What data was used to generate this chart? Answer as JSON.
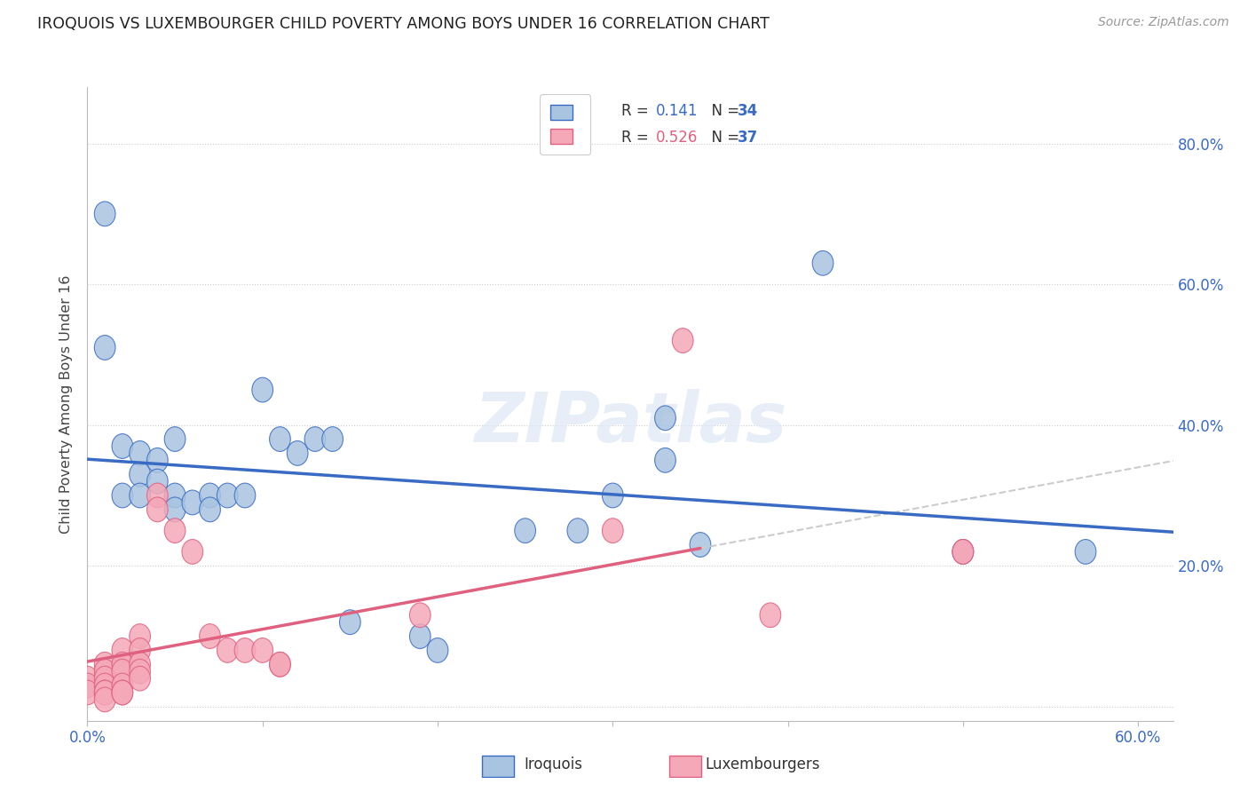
{
  "title": "IROQUOIS VS LUXEMBOURGER CHILD POVERTY AMONG BOYS UNDER 16 CORRELATION CHART",
  "source": "Source: ZipAtlas.com",
  "ylabel": "Child Poverty Among Boys Under 16",
  "legend_iroquois": "Iroquois",
  "legend_luxembourgers": "Luxembourgers",
  "iroquois_R": "0.141",
  "iroquois_N": "34",
  "luxembourgers_R": "0.526",
  "luxembourgers_N": "37",
  "iroquois_color": "#a8c4e0",
  "luxembourgers_color": "#f4a8b8",
  "iroquois_line_color": "#3a6bc4",
  "luxembourgers_line_color": "#e06080",
  "iroquois_scatter": [
    [
      0.01,
      0.7
    ],
    [
      0.01,
      0.51
    ],
    [
      0.02,
      0.37
    ],
    [
      0.02,
      0.3
    ],
    [
      0.03,
      0.36
    ],
    [
      0.03,
      0.33
    ],
    [
      0.03,
      0.3
    ],
    [
      0.04,
      0.35
    ],
    [
      0.04,
      0.32
    ],
    [
      0.05,
      0.38
    ],
    [
      0.05,
      0.3
    ],
    [
      0.05,
      0.28
    ],
    [
      0.06,
      0.29
    ],
    [
      0.07,
      0.3
    ],
    [
      0.07,
      0.28
    ],
    [
      0.08,
      0.3
    ],
    [
      0.09,
      0.3
    ],
    [
      0.1,
      0.45
    ],
    [
      0.11,
      0.38
    ],
    [
      0.12,
      0.36
    ],
    [
      0.13,
      0.38
    ],
    [
      0.14,
      0.38
    ],
    [
      0.15,
      0.12
    ],
    [
      0.19,
      0.1
    ],
    [
      0.2,
      0.08
    ],
    [
      0.25,
      0.25
    ],
    [
      0.28,
      0.25
    ],
    [
      0.3,
      0.3
    ],
    [
      0.33,
      0.41
    ],
    [
      0.33,
      0.35
    ],
    [
      0.35,
      0.23
    ],
    [
      0.42,
      0.63
    ],
    [
      0.5,
      0.22
    ],
    [
      0.57,
      0.22
    ]
  ],
  "luxembourgers_scatter": [
    [
      0.0,
      0.04
    ],
    [
      0.0,
      0.03
    ],
    [
      0.0,
      0.02
    ],
    [
      0.01,
      0.06
    ],
    [
      0.01,
      0.05
    ],
    [
      0.01,
      0.04
    ],
    [
      0.01,
      0.03
    ],
    [
      0.01,
      0.02
    ],
    [
      0.01,
      0.02
    ],
    [
      0.01,
      0.01
    ],
    [
      0.02,
      0.08
    ],
    [
      0.02,
      0.06
    ],
    [
      0.02,
      0.05
    ],
    [
      0.02,
      0.03
    ],
    [
      0.02,
      0.02
    ],
    [
      0.02,
      0.02
    ],
    [
      0.03,
      0.1
    ],
    [
      0.03,
      0.08
    ],
    [
      0.03,
      0.06
    ],
    [
      0.03,
      0.05
    ],
    [
      0.03,
      0.04
    ],
    [
      0.04,
      0.3
    ],
    [
      0.04,
      0.28
    ],
    [
      0.05,
      0.25
    ],
    [
      0.06,
      0.22
    ],
    [
      0.07,
      0.1
    ],
    [
      0.08,
      0.08
    ],
    [
      0.09,
      0.08
    ],
    [
      0.1,
      0.08
    ],
    [
      0.11,
      0.06
    ],
    [
      0.11,
      0.06
    ],
    [
      0.19,
      0.13
    ],
    [
      0.3,
      0.25
    ],
    [
      0.34,
      0.52
    ],
    [
      0.39,
      0.13
    ],
    [
      0.5,
      0.22
    ],
    [
      0.5,
      0.22
    ]
  ],
  "watermark": "ZIPatlas",
  "xlim": [
    0.0,
    0.62
  ],
  "ylim": [
    -0.02,
    0.88
  ],
  "xticks": [
    0.0,
    0.1,
    0.2,
    0.3,
    0.4,
    0.5,
    0.6
  ],
  "yticks": [
    0.0,
    0.2,
    0.4,
    0.6,
    0.8
  ],
  "xlabel_labels": [
    "0.0%",
    "",
    "",
    "",
    "",
    "",
    "60.0%"
  ],
  "ylabel_labels": [
    "",
    "20.0%",
    "40.0%",
    "60.0%",
    "80.0%"
  ]
}
